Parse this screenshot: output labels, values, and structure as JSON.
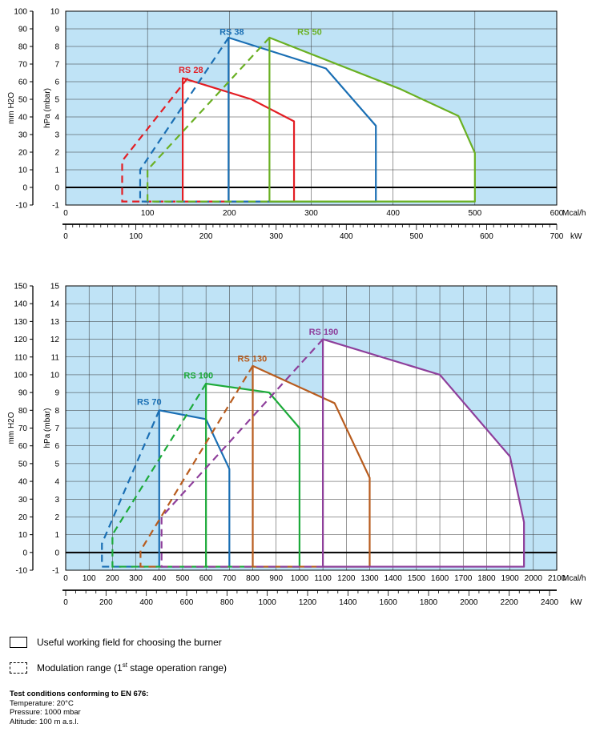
{
  "colors": {
    "field": "#bfe3f6",
    "grid": "#333333"
  },
  "chart_data": [
    {
      "type": "line",
      "ylabel_left": "mm H2O",
      "ylabel_right": "hPa (mbar)",
      "y_mm_ticks": [
        -10,
        0,
        10,
        20,
        30,
        40,
        50,
        60,
        70,
        80,
        90,
        100
      ],
      "y_hpa_ticks": [
        -1,
        0,
        1,
        2,
        3,
        4,
        5,
        6,
        7,
        8,
        9,
        10
      ],
      "ylim": [
        -1,
        10
      ],
      "x_mcal_label": "Mcal/h",
      "x_mcal_ticks": [
        0,
        100,
        200,
        300,
        400,
        500,
        600
      ],
      "xlim_mcal": [
        0,
        600
      ],
      "x_kw_label": "kW",
      "x_kw_ticks": [
        0,
        100,
        200,
        300,
        400,
        500,
        600,
        700
      ],
      "series": [
        {
          "name": "RS 28",
          "color": "#e31e24",
          "label_at": [
            138,
            6.5
          ],
          "modulation": [
            [
              149,
              6.2
            ],
            [
              69,
              1.5
            ],
            [
              69,
              -0.8
            ],
            [
              143,
              -0.8
            ]
          ],
          "working": [
            [
              143,
              -0.8
            ],
            [
              143,
              6.2
            ],
            [
              227,
              5.0
            ],
            [
              279,
              3.75
            ],
            [
              279,
              -0.8
            ],
            [
              143,
              -0.8
            ]
          ]
        },
        {
          "name": "RS 38",
          "color": "#1a6fb4",
          "label_at": [
            188,
            8.65
          ],
          "modulation": [
            [
              199,
              8.5
            ],
            [
              91,
              1.0
            ],
            [
              91,
              -0.8
            ],
            [
              199,
              -0.8
            ]
          ],
          "working": [
            [
              199,
              -0.8
            ],
            [
              199,
              8.5
            ],
            [
              318,
              6.75
            ],
            [
              379,
              3.5
            ],
            [
              379,
              -0.8
            ],
            [
              199,
              -0.8
            ]
          ]
        },
        {
          "name": "RS 50",
          "color": "#6ab023",
          "label_at": [
            283,
            8.65
          ],
          "modulation": [
            [
              249,
              8.5
            ],
            [
              100,
              1.0
            ],
            [
              100,
              -0.8
            ],
            [
              249,
              -0.8
            ]
          ],
          "working": [
            [
              249,
              -0.8
            ],
            [
              249,
              8.5
            ],
            [
              408,
              5.6
            ],
            [
              480,
              4.05
            ],
            [
              500,
              1.95
            ],
            [
              500,
              -0.8
            ],
            [
              249,
              -0.8
            ]
          ]
        }
      ]
    },
    {
      "type": "line",
      "ylabel_left": "mm H2O",
      "ylabel_right": "hPa (mbar)",
      "y_mm_ticks": [
        -10,
        0,
        10,
        20,
        30,
        40,
        50,
        60,
        70,
        80,
        90,
        100,
        110,
        120,
        130,
        140,
        150
      ],
      "y_hpa_ticks": [
        -1,
        0,
        1,
        2,
        3,
        4,
        5,
        6,
        7,
        8,
        9,
        10,
        11,
        12,
        13,
        14,
        15
      ],
      "ylim": [
        -1,
        15
      ],
      "x_mcal_label": "Mcal/h",
      "x_mcal_ticks": [
        0,
        100,
        200,
        300,
        400,
        500,
        600,
        700,
        800,
        900,
        1000,
        1100,
        1200,
        1300,
        1400,
        1500,
        1600,
        1700,
        1800,
        1900,
        2000,
        2100
      ],
      "xlim_mcal": [
        0,
        2100
      ],
      "x_kw_label": "kW",
      "x_kw_ticks": [
        0,
        200,
        400,
        600,
        800,
        1000,
        1200,
        1400,
        1600,
        1800,
        2000,
        2200,
        2400
      ],
      "series": [
        {
          "name": "RS 70",
          "color": "#1a6fb4",
          "label_at": [
            305,
            8.3
          ],
          "modulation": [
            [
              400,
              8.0
            ],
            [
              155,
              0.5
            ],
            [
              155,
              -0.8
            ],
            [
              400,
              -0.8
            ]
          ],
          "working": [
            [
              400,
              -0.8
            ],
            [
              400,
              8.0
            ],
            [
              600,
              7.5
            ],
            [
              700,
              4.7
            ],
            [
              700,
              -0.8
            ],
            [
              400,
              -0.8
            ]
          ]
        },
        {
          "name": "RS 100",
          "color": "#1daa3a",
          "label_at": [
            505,
            9.8
          ],
          "modulation": [
            [
              600,
              9.5
            ],
            [
              200,
              1.0
            ],
            [
              200,
              -0.8
            ],
            [
              600,
              -0.8
            ]
          ],
          "working": [
            [
              600,
              -0.8
            ],
            [
              600,
              9.5
            ],
            [
              870,
              9.0
            ],
            [
              1000,
              7.0
            ],
            [
              1000,
              -0.8
            ],
            [
              600,
              -0.8
            ]
          ]
        },
        {
          "name": "RS 130",
          "color": "#b85c1e",
          "label_at": [
            735,
            10.75
          ],
          "modulation": [
            [
              800,
              10.5
            ],
            [
              320,
              0.1
            ],
            [
              320,
              -0.8
            ],
            [
              800,
              -0.8
            ]
          ],
          "working": [
            [
              800,
              -0.8
            ],
            [
              800,
              10.5
            ],
            [
              1150,
              8.4
            ],
            [
              1300,
              4.2
            ],
            [
              1300,
              -0.8
            ],
            [
              800,
              -0.8
            ]
          ]
        },
        {
          "name": "RS 190",
          "color": "#8e3f9b",
          "label_at": [
            1040,
            12.25
          ],
          "modulation": [
            [
              1100,
              12.0
            ],
            [
              410,
              2.0
            ],
            [
              410,
              -0.8
            ],
            [
              1100,
              -0.8
            ]
          ],
          "working": [
            [
              1100,
              -0.8
            ],
            [
              1100,
              12.0
            ],
            [
              1600,
              10.0
            ],
            [
              1900,
              5.4
            ],
            [
              1960,
              1.7
            ],
            [
              1960,
              -0.8
            ],
            [
              1100,
              -0.8
            ]
          ]
        }
      ]
    }
  ],
  "legend": {
    "working_field": "Useful working field for choosing the burner",
    "modulation_prefix": "Modulation range (1",
    "modulation_sup": "st",
    "modulation_suffix": " stage operation range)"
  },
  "notes": {
    "title": "Test conditions conforming to EN 676:",
    "temperature": "Temperature: 20°C",
    "pressure": "Pressure: 1000 mbar",
    "altitude": "Altitude: 100 m a.s.l."
  }
}
